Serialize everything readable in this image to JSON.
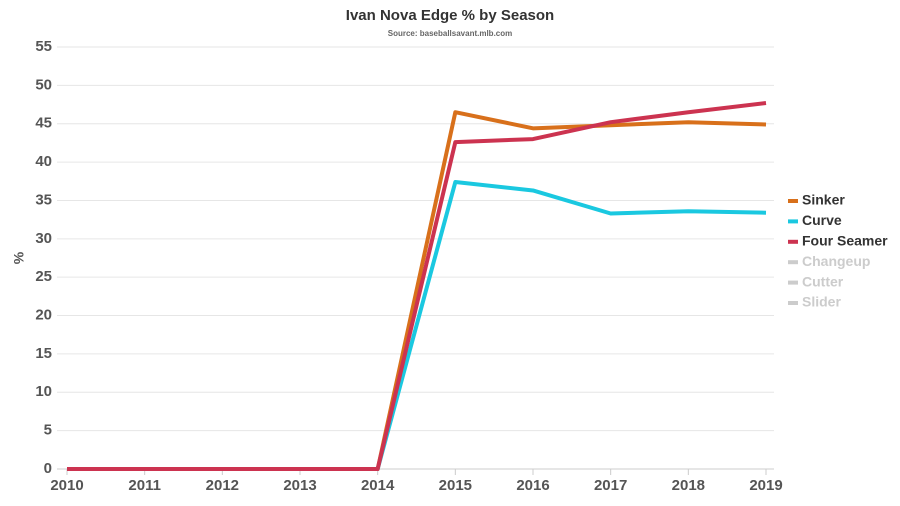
{
  "chart_data": {
    "type": "line",
    "title": "Ivan Nova Edge % by Season",
    "subtitle": "Source: baseballsavant.mlb.com",
    "y_label": "%",
    "categories": [
      "2010",
      "2011",
      "2012",
      "2013",
      "2014",
      "2015",
      "2016",
      "2017",
      "2018",
      "2019"
    ],
    "series": [
      {
        "name": "Sinker",
        "color": "#d8701b",
        "values": [
          0,
          0,
          0,
          0,
          0,
          46.5,
          44.4,
          44.8,
          45.2,
          44.9
        ]
      },
      {
        "name": "Curve",
        "color": "#1ac8e0",
        "values": [
          0,
          0,
          0,
          0,
          0,
          37.4,
          36.3,
          33.3,
          33.6,
          33.4
        ]
      },
      {
        "name": "Four Seamer",
        "color": "#cc3350",
        "values": [
          0,
          0,
          0,
          0,
          0,
          42.6,
          43.0,
          45.2,
          46.5,
          47.7
        ]
      },
      {
        "name": "Changeup",
        "color": "#cccccc",
        "hidden": true,
        "values": [
          null,
          null,
          null,
          null,
          null,
          null,
          null,
          null,
          null,
          null
        ]
      },
      {
        "name": "Cutter",
        "color": "#cccccc",
        "hidden": true,
        "values": [
          null,
          null,
          null,
          null,
          null,
          null,
          null,
          null,
          null,
          null
        ]
      },
      {
        "name": "Slider",
        "color": "#cccccc",
        "hidden": true,
        "values": [
          null,
          null,
          null,
          null,
          null,
          null,
          null,
          null,
          null,
          null
        ]
      }
    ],
    "ylim": [
      0,
      55
    ],
    "yticks": [
      0,
      5,
      10,
      15,
      20,
      25,
      30,
      35,
      40,
      45,
      50,
      55
    ],
    "grid": true,
    "legend": "right"
  }
}
